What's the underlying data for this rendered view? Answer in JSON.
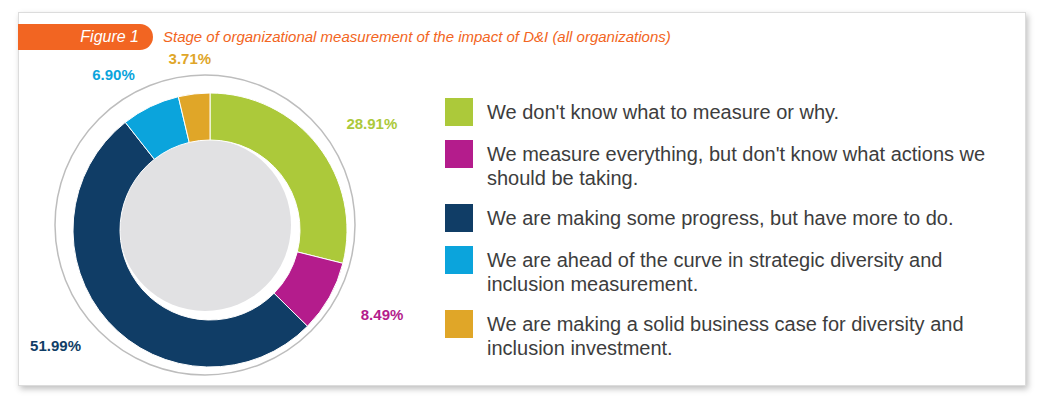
{
  "chart_data": {
    "type": "pie",
    "title": "Stage of organizational measurement of the impact of D&I (all organizations)",
    "annotations": [
      "Figure 1"
    ],
    "categories": [
      "We don't know what to measure or why.",
      "We measure everything, but don't know what actions we should be taking.",
      "We are making some progress, but have more to do.",
      "We are ahead of the curve in strategic diversity and inclusion measurement.",
      "We are making a solid business case for diversity and inclusion investment."
    ],
    "values": [
      28.91,
      8.49,
      51.99,
      6.9,
      3.71
    ],
    "value_labels": [
      "28.91%",
      "8.49%",
      "51.99%",
      "6.90%",
      "3.71%"
    ],
    "colors": [
      "#acc93a",
      "#b41c8c",
      "#103d66",
      "#0ba4dc",
      "#e0a628"
    ],
    "data_labels": true,
    "legend": "right"
  }
}
